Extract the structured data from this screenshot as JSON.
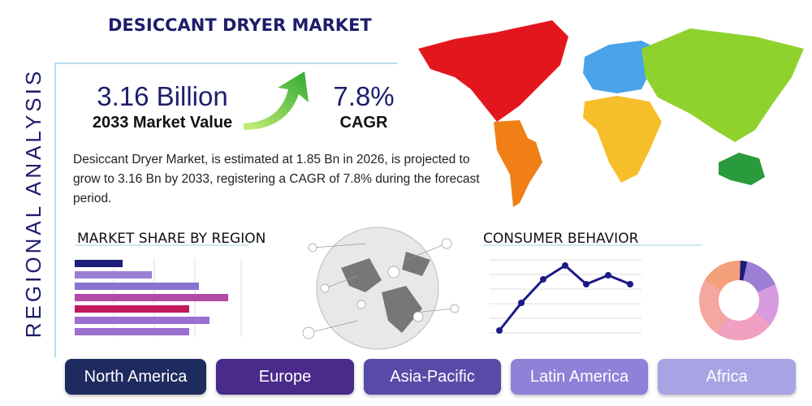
{
  "header": {
    "title": "DESICCANT DRYER MARKET",
    "side_title": "REGIONAL ANALYSIS"
  },
  "stats": [
    {
      "value": "3.16 Billion",
      "label": "2033 Market Value"
    },
    {
      "value": "7.8%",
      "label": "CAGR"
    }
  ],
  "description": "Desiccant Dryer Market, is estimated at 1.85 Bn in 2026, is projected to grow to 3.16 Bn by 2033, registering a CAGR of 7.8% during the forecast period.",
  "sections": {
    "market_share": "MARKET SHARE BY REGION",
    "consumer_behavior": "CONSUMER BEHAVIOR"
  },
  "regions": [
    "North America",
    "Europe",
    "Asia-Pacific",
    "Latin America",
    "Africa"
  ]
}
